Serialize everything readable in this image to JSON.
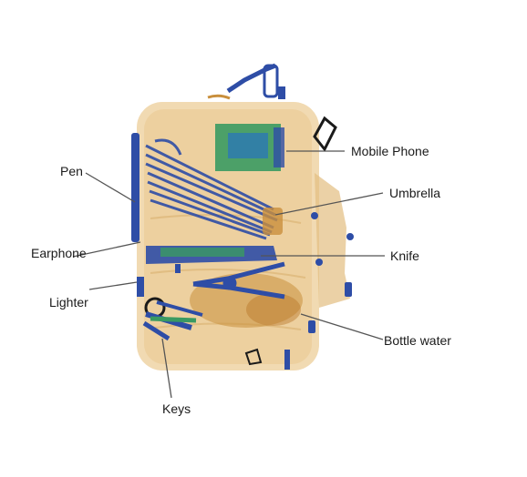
{
  "labels": {
    "mobile_phone": "Mobile Phone",
    "pen": "Pen",
    "umbrella": "Umbrella",
    "earphone": "Earphone",
    "knife": "Knife",
    "lighter": "Lighter",
    "bottle_water": "Bottle water",
    "keys": "Keys"
  },
  "colors": {
    "organic": "#e7c58f",
    "organic_dark": "#c98f3c",
    "metal": "#2e4da6",
    "electronics": "#3a9a62",
    "leader_line": "#555555"
  }
}
